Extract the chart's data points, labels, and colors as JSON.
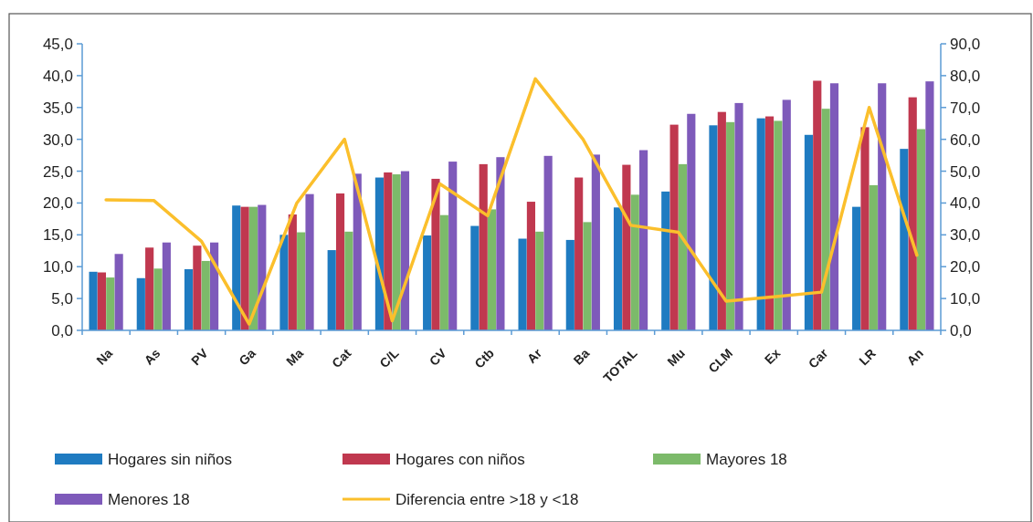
{
  "chart_data": {
    "type": "bar",
    "categories": [
      "Na",
      "As",
      "PV",
      "Ga",
      "Ma",
      "Cat",
      "C/L",
      "CV",
      "Ctb",
      "Ar",
      "Ba",
      "TOTAL",
      "Mu",
      "CLM",
      "Ex",
      "Car",
      "LR",
      "An"
    ],
    "series": [
      {
        "name": "Hogares sin niños",
        "color": "#1f7bc1",
        "values": [
          9.2,
          8.2,
          9.6,
          19.6,
          15.0,
          12.6,
          24.0,
          14.9,
          16.4,
          14.4,
          14.2,
          19.3,
          21.8,
          32.2,
          33.3,
          30.7,
          19.4,
          28.5
        ]
      },
      {
        "name": "Hogares con niños",
        "color": "#c0384f",
        "values": [
          9.1,
          13.0,
          13.3,
          19.4,
          18.2,
          21.5,
          24.8,
          23.8,
          26.1,
          20.2,
          24.0,
          26.0,
          32.3,
          34.3,
          33.6,
          39.2,
          31.9,
          36.6
        ]
      },
      {
        "name": "Mayores 18",
        "color": "#7cba6a",
        "values": [
          8.3,
          9.7,
          10.9,
          19.4,
          15.4,
          15.5,
          24.5,
          18.1,
          19.0,
          15.5,
          17.0,
          21.3,
          26.1,
          32.7,
          32.9,
          34.8,
          22.8,
          31.6
        ]
      },
      {
        "name": "Menores 18",
        "color": "#7e5aba",
        "values": [
          12.0,
          13.8,
          13.8,
          19.7,
          21.4,
          24.6,
          25.0,
          26.5,
          27.2,
          27.4,
          27.6,
          28.3,
          34.0,
          35.7,
          36.2,
          38.8,
          38.8,
          39.1
        ]
      },
      {
        "name": "Diferencia entre >18 y <18",
        "type": "line",
        "axis": "y2",
        "color": "#fbbf2c",
        "values": [
          41,
          40.8,
          28,
          2,
          40,
          60,
          3,
          46,
          36,
          79,
          60,
          33,
          30.8,
          9.2,
          10.5,
          12,
          70,
          23.6
        ]
      }
    ],
    "ylim": [
      0,
      45
    ],
    "yticks": [
      {
        "value": 0,
        "label": "0,0"
      },
      {
        "value": 5,
        "label": "5,0"
      },
      {
        "value": 10,
        "label": "10,0"
      },
      {
        "value": 15,
        "label": "15,0"
      },
      {
        "value": 20,
        "label": "20,0"
      },
      {
        "value": 25,
        "label": "25,0"
      },
      {
        "value": 30,
        "label": "30,0"
      },
      {
        "value": 35,
        "label": "35,0"
      },
      {
        "value": 40,
        "label": "40,0"
      },
      {
        "value": 45,
        "label": "45,0"
      }
    ],
    "y2lim": [
      0,
      90
    ],
    "y2ticks": [
      {
        "value": 0,
        "label": "0,0"
      },
      {
        "value": 10,
        "label": "10,0"
      },
      {
        "value": 20,
        "label": "20,0"
      },
      {
        "value": 30,
        "label": "30,0"
      },
      {
        "value": 40,
        "label": "40,0"
      },
      {
        "value": 50,
        "label": "50,0"
      },
      {
        "value": 60,
        "label": "60,0"
      },
      {
        "value": 70,
        "label": "70,0"
      },
      {
        "value": 80,
        "label": "80,0"
      },
      {
        "value": 90,
        "label": "90,0"
      }
    ],
    "legend": "bottom",
    "grid": false,
    "marker": "none"
  }
}
